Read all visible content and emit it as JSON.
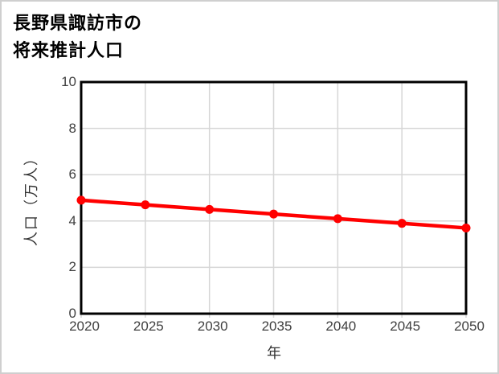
{
  "window": {
    "background_color": "#ffffff",
    "frame_border_color": "#cfcfcf"
  },
  "chart_data": {
    "type": "line",
    "title": "長野県諏訪市の将来推計人口",
    "title_lines": [
      "長野県諏訪市の",
      "将来推計人口"
    ],
    "xlabel": "年",
    "ylabel": "人口（万人）",
    "x": [
      2020,
      2025,
      2030,
      2035,
      2040,
      2045,
      2050
    ],
    "values": [
      4.9,
      4.7,
      4.5,
      4.3,
      4.1,
      3.9,
      3.7
    ],
    "xlim": [
      2020,
      2050
    ],
    "ylim": [
      0,
      10
    ],
    "xticks": [
      2020,
      2025,
      2030,
      2035,
      2040,
      2045,
      2050
    ],
    "yticks": [
      0,
      2,
      4,
      6,
      8,
      10
    ],
    "grid": true,
    "legend": "none",
    "line_color": "#ff0000",
    "marker": "circle",
    "gridline_color": "#d6d6d6",
    "axis_frame_color": "#000000",
    "tick_label_color": "#404040"
  }
}
